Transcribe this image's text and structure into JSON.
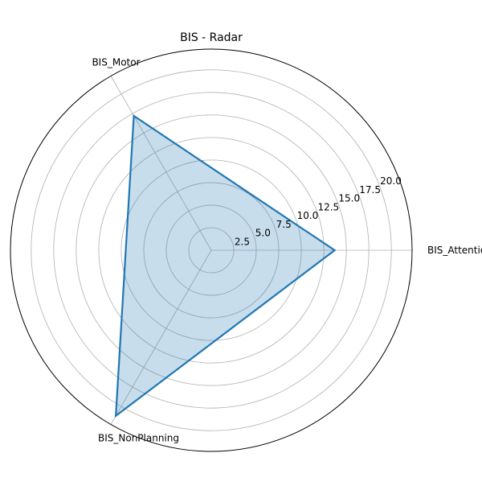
{
  "chart_data": {
    "type": "radar",
    "title": "BIS - Radar",
    "categories": [
      "BIS_Attentional",
      "BIS_Motor",
      "BIS_NonPlanning"
    ],
    "series": [
      {
        "values": [
          13.7,
          17.2,
          21.2
        ]
      }
    ],
    "rlim": [
      0,
      22.3
    ],
    "rticks": [
      2.5,
      5.0,
      7.5,
      10.0,
      12.5,
      15.0,
      17.5,
      20.0
    ],
    "rtick_labels": [
      "2.5",
      "5.0",
      "7.5",
      "10.0",
      "12.5",
      "15.0",
      "17.5",
      "20.0"
    ],
    "grid": true,
    "colors": {
      "line": "#1f77b4",
      "fill": "#1f77b4",
      "grid": "#b0b0b0",
      "frame": "#000000"
    }
  }
}
